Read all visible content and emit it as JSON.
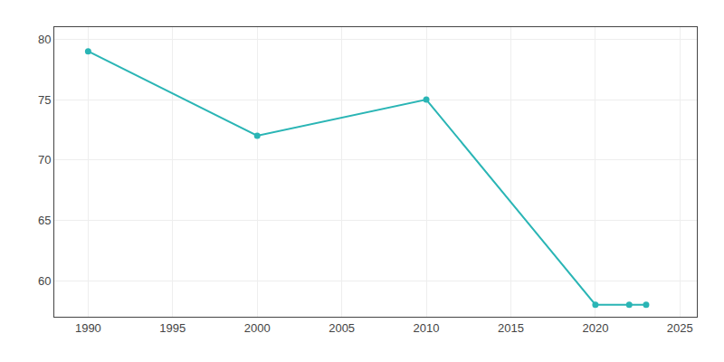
{
  "chart_data": {
    "type": "line",
    "x": [
      1990,
      2000,
      2010,
      2020,
      2022,
      2023
    ],
    "values": [
      79,
      72,
      75,
      58,
      58,
      58
    ],
    "color": "#2ab5b5",
    "marker": "circle",
    "xlim": [
      1988,
      2026
    ],
    "ylim": [
      57,
      81
    ],
    "xticks": [
      1990,
      1995,
      2000,
      2005,
      2010,
      2015,
      2020,
      2025
    ],
    "yticks": [
      60,
      65,
      70,
      75,
      80
    ],
    "grid": true
  }
}
